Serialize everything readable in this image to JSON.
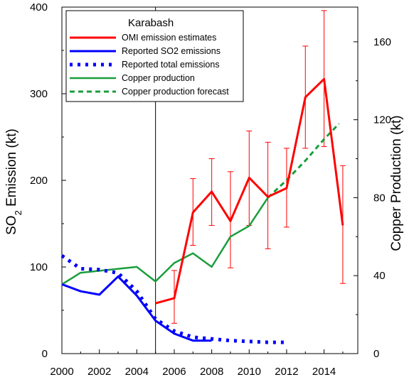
{
  "chart_data": {
    "type": "line",
    "legend_title": "Karabash",
    "legend_position": "top-left",
    "grid": false,
    "xlim": [
      2000,
      2015.8
    ],
    "x_ticks": [
      2000,
      2002,
      2004,
      2006,
      2008,
      2010,
      2012,
      2014
    ],
    "y_left": {
      "label": "SO",
      "label_sub": "2",
      "label_suffix": " Emission (kt)",
      "lim": [
        0,
        400
      ],
      "ticks": [
        0,
        100,
        200,
        300,
        400
      ]
    },
    "y_right": {
      "label": "Copper Production (kt)",
      "lim": [
        0,
        177.8
      ],
      "ticks": [
        0,
        40,
        80,
        120,
        160
      ]
    },
    "vertical_line_x": 2005,
    "series": [
      {
        "name": "OMI emission estimates",
        "axis": "left",
        "color": "#ff0000",
        "style": "solid",
        "width": 3,
        "x": [
          2005,
          2006,
          2007,
          2008,
          2009,
          2010,
          2011,
          2012,
          2013,
          2014,
          2015
        ],
        "y": [
          58,
          64,
          163,
          187,
          153,
          203,
          181,
          191,
          296,
          317,
          148
        ],
        "err_low": [
          58,
          35,
          125,
          148,
          99,
          148,
          121,
          146,
          237,
          239,
          81
        ],
        "err_high": [
          58,
          96,
          202,
          225,
          210,
          257,
          244,
          237,
          355,
          396,
          217
        ]
      },
      {
        "name": "Reported SO2 emissions",
        "axis": "left",
        "color": "#0000ff",
        "style": "solid",
        "width": 3,
        "x": [
          2000,
          2001,
          2002,
          2003,
          2004,
          2005,
          2006,
          2007,
          2008
        ],
        "y": [
          80,
          72,
          68,
          89,
          67,
          38,
          23,
          15,
          15
        ]
      },
      {
        "name": "Reported total emissions",
        "axis": "left",
        "color": "#0000ff",
        "style": "dotted",
        "width": 5,
        "x": [
          2000,
          2001,
          2002,
          2003,
          2004,
          2005,
          2006,
          2007,
          2008,
          2009,
          2010,
          2011,
          2012
        ],
        "y": [
          113,
          98,
          97,
          93,
          72,
          40,
          26,
          19,
          17,
          15,
          14,
          13,
          13
        ]
      },
      {
        "name": "Copper production",
        "axis": "right",
        "color": "#1a9e3c",
        "style": "solid",
        "width": 2.5,
        "x": [
          2000,
          2001,
          2002,
          2003,
          2004,
          2005,
          2006,
          2007,
          2008,
          2009,
          2010,
          2011
        ],
        "y": [
          35.5,
          41.5,
          42.5,
          43.5,
          44.5,
          37,
          46.5,
          51.5,
          44.5,
          60,
          65.5,
          80
        ]
      },
      {
        "name": "Copper production forecast",
        "axis": "right",
        "color": "#1a9e3c",
        "style": "dashed",
        "width": 3,
        "x": [
          2011,
          2012,
          2013,
          2014,
          2014.8
        ],
        "y": [
          80,
          89,
          99,
          110,
          118
        ]
      }
    ]
  }
}
